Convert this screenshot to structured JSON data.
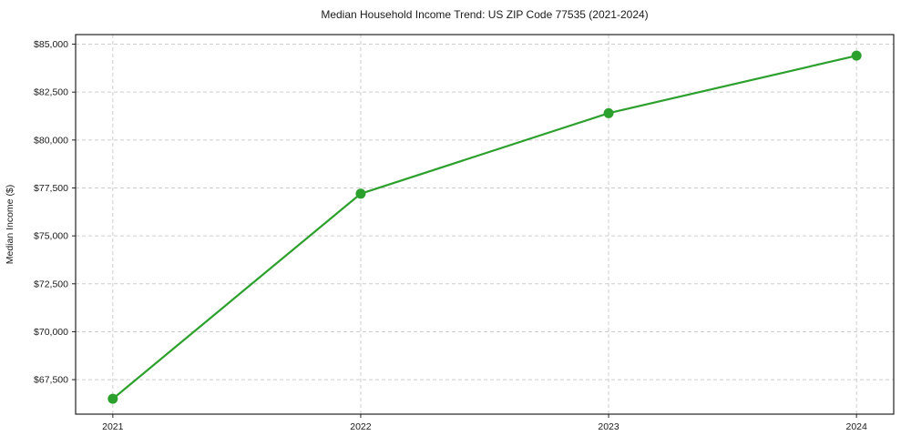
{
  "chart_data": {
    "type": "line",
    "title": "Median Household Income Trend: US ZIP Code 77535 (2021-2024)",
    "xlabel": "",
    "ylabel": "Median Income ($)",
    "x": [
      2021,
      2022,
      2023,
      2024
    ],
    "x_tick_labels": [
      "2021",
      "2022",
      "2023",
      "2024"
    ],
    "series": [
      {
        "name": "Median Household Income",
        "values": [
          66500,
          77200,
          81400,
          84400
        ],
        "color": "#2ca02c",
        "marker": "circle"
      }
    ],
    "xlim": [
      2020.85,
      2024.15
    ],
    "ylim": [
      65700,
      85500
    ],
    "yticks": [
      67500,
      70000,
      72500,
      75000,
      77500,
      80000,
      82500,
      85000
    ],
    "ytick_labels": [
      "$67,500",
      "$70,000",
      "$72,500",
      "$75,000",
      "$77,500",
      "$80,000",
      "$82,500",
      "$85,000"
    ],
    "grid": true,
    "grid_style": "dashed",
    "legend": "none",
    "colors": {
      "line": "#2ca02c",
      "grid": "#cdcdcd",
      "spine": "#222222",
      "text": "#1a1a1a",
      "background": "#ffffff"
    }
  }
}
